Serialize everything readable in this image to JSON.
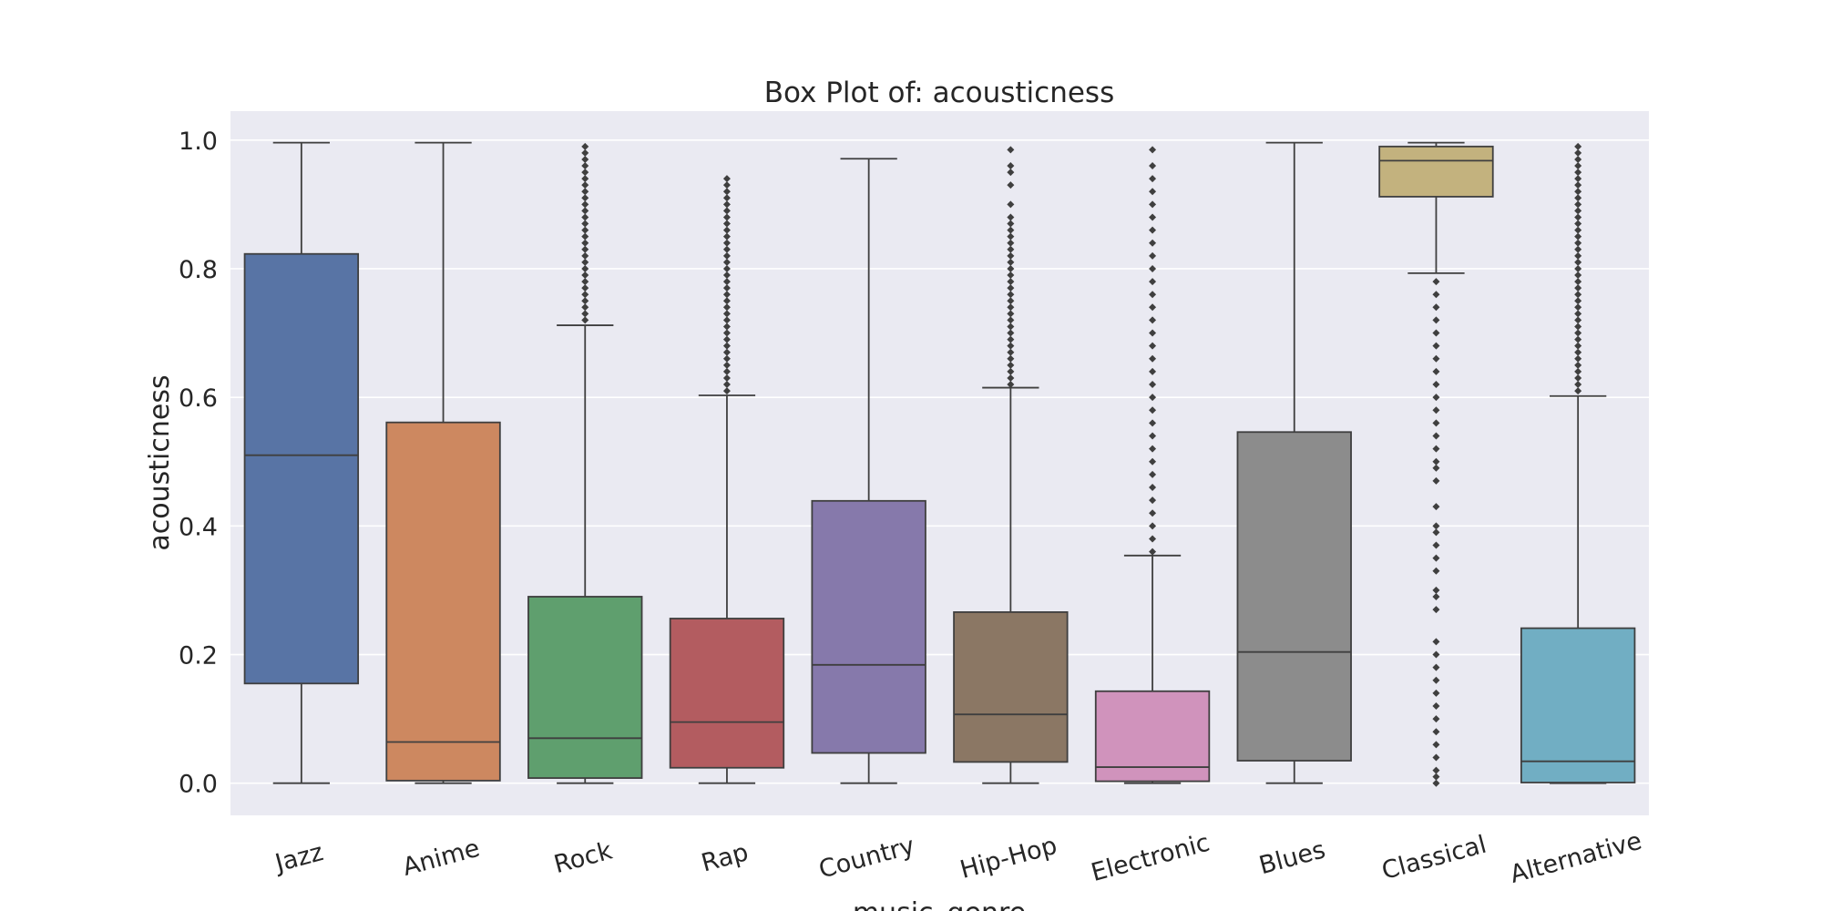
{
  "chart_data": {
    "type": "box",
    "title": "Box Plot of: acousticness",
    "xlabel": "music_genre",
    "ylabel": "acousticness",
    "ylim": [
      -0.05,
      1.045
    ],
    "yticks": [
      "0.0",
      "0.2",
      "0.4",
      "0.6",
      "0.8",
      "1.0"
    ],
    "ytick_values": [
      0,
      0.2,
      0.4,
      0.6,
      0.8,
      1.0
    ],
    "grid": true,
    "categories": [
      "Jazz",
      "Anime",
      "Rock",
      "Rap",
      "Country",
      "Hip-Hop",
      "Electronic",
      "Blues",
      "Classical",
      "Alternative"
    ],
    "colors": [
      "#5874a5",
      "#cd8860",
      "#5f9f6e",
      "#b35c60",
      "#8679ab",
      "#8b7764",
      "#d093bc",
      "#8c8c8c",
      "#c3b27e",
      "#71aec3"
    ],
    "boxes": [
      {
        "min": 0.0,
        "q1": 0.155,
        "median": 0.51,
        "q3": 0.823,
        "max": 0.996,
        "outliers": []
      },
      {
        "min": 0.0,
        "q1": 0.004,
        "median": 0.064,
        "q3": 0.561,
        "max": 0.996,
        "outliers": []
      },
      {
        "min": 0.0,
        "q1": 0.008,
        "median": 0.07,
        "q3": 0.29,
        "max": 0.712,
        "outliers": [
          0.72,
          0.73,
          0.74,
          0.75,
          0.76,
          0.77,
          0.78,
          0.79,
          0.8,
          0.81,
          0.82,
          0.83,
          0.84,
          0.85,
          0.86,
          0.87,
          0.88,
          0.89,
          0.9,
          0.91,
          0.92,
          0.93,
          0.94,
          0.95,
          0.96,
          0.97,
          0.98,
          0.99
        ]
      },
      {
        "min": 0.0,
        "q1": 0.024,
        "median": 0.095,
        "q3": 0.256,
        "max": 0.603,
        "outliers": [
          0.61,
          0.62,
          0.63,
          0.64,
          0.65,
          0.66,
          0.67,
          0.68,
          0.69,
          0.7,
          0.71,
          0.72,
          0.73,
          0.74,
          0.75,
          0.76,
          0.77,
          0.78,
          0.79,
          0.8,
          0.81,
          0.82,
          0.83,
          0.84,
          0.85,
          0.86,
          0.87,
          0.88,
          0.89,
          0.9,
          0.91,
          0.92,
          0.93,
          0.94
        ]
      },
      {
        "min": 0.0,
        "q1": 0.047,
        "median": 0.184,
        "q3": 0.439,
        "max": 0.971,
        "outliers": []
      },
      {
        "min": 0.0,
        "q1": 0.033,
        "median": 0.107,
        "q3": 0.266,
        "max": 0.615,
        "outliers": [
          0.62,
          0.63,
          0.64,
          0.65,
          0.66,
          0.67,
          0.68,
          0.69,
          0.7,
          0.71,
          0.72,
          0.73,
          0.74,
          0.75,
          0.76,
          0.77,
          0.78,
          0.79,
          0.8,
          0.81,
          0.82,
          0.83,
          0.84,
          0.85,
          0.86,
          0.87,
          0.88,
          0.9,
          0.93,
          0.95,
          0.96,
          0.985
        ]
      },
      {
        "min": 0.0,
        "q1": 0.003,
        "median": 0.025,
        "q3": 0.143,
        "max": 0.354,
        "outliers": [
          0.36,
          0.38,
          0.4,
          0.42,
          0.44,
          0.46,
          0.48,
          0.5,
          0.52,
          0.54,
          0.56,
          0.58,
          0.6,
          0.62,
          0.64,
          0.66,
          0.68,
          0.7,
          0.72,
          0.74,
          0.76,
          0.78,
          0.8,
          0.82,
          0.84,
          0.86,
          0.88,
          0.9,
          0.92,
          0.94,
          0.96,
          0.985
        ]
      },
      {
        "min": 0.0,
        "q1": 0.035,
        "median": 0.204,
        "q3": 0.546,
        "max": 0.996,
        "outliers": []
      },
      {
        "min": 0.793,
        "q1": 0.912,
        "median": 0.968,
        "q3": 0.99,
        "max": 0.996,
        "outliers": [
          0.0,
          0.01,
          0.02,
          0.04,
          0.06,
          0.08,
          0.1,
          0.12,
          0.14,
          0.16,
          0.18,
          0.2,
          0.22,
          0.27,
          0.29,
          0.3,
          0.33,
          0.35,
          0.37,
          0.39,
          0.4,
          0.43,
          0.47,
          0.49,
          0.5,
          0.52,
          0.54,
          0.56,
          0.58,
          0.6,
          0.62,
          0.64,
          0.66,
          0.68,
          0.7,
          0.72,
          0.74,
          0.76,
          0.78
        ]
      },
      {
        "min": 0.0,
        "q1": 0.001,
        "median": 0.034,
        "q3": 0.241,
        "max": 0.602,
        "outliers": [
          0.61,
          0.62,
          0.63,
          0.64,
          0.65,
          0.66,
          0.67,
          0.68,
          0.69,
          0.7,
          0.71,
          0.72,
          0.73,
          0.74,
          0.75,
          0.76,
          0.77,
          0.78,
          0.79,
          0.8,
          0.81,
          0.82,
          0.83,
          0.84,
          0.85,
          0.86,
          0.87,
          0.88,
          0.89,
          0.9,
          0.91,
          0.92,
          0.93,
          0.94,
          0.95,
          0.96,
          0.97,
          0.98,
          0.99
        ]
      }
    ]
  }
}
